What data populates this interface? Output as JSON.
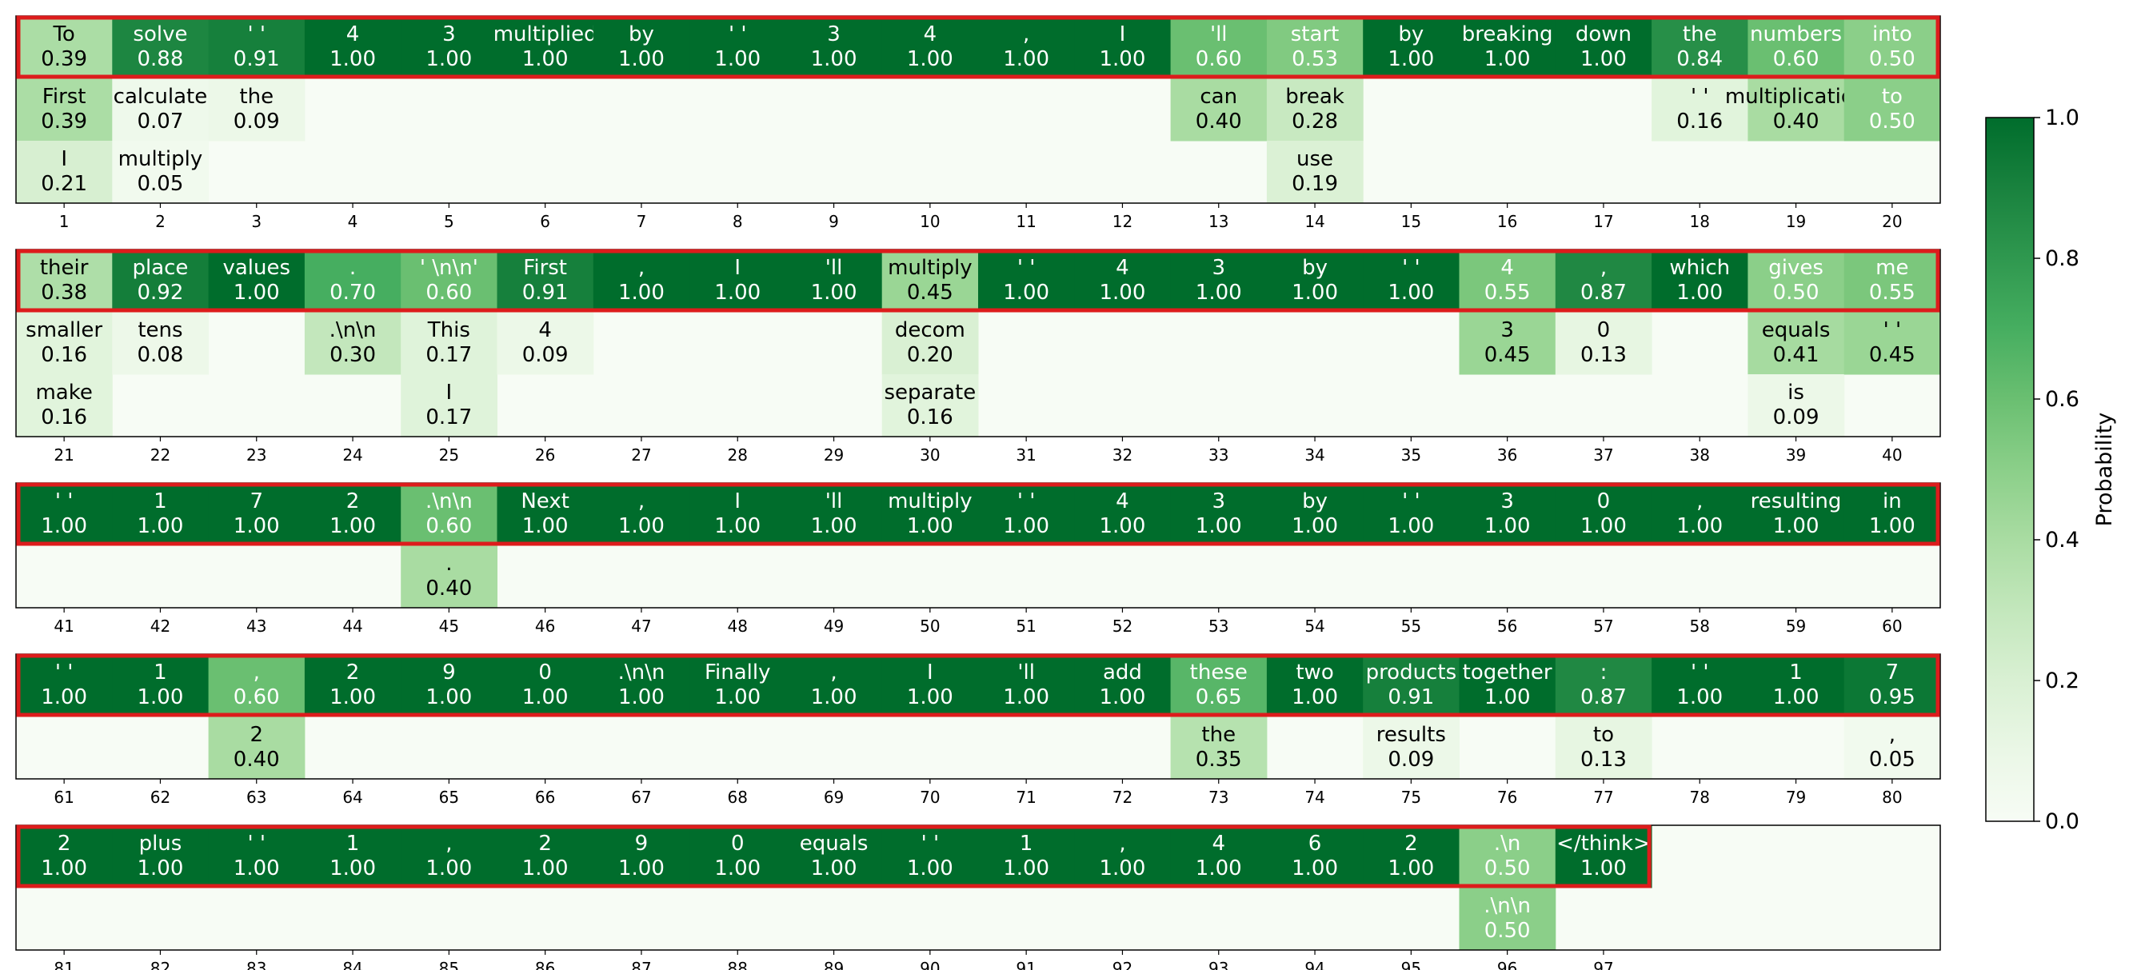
{
  "chart_data": {
    "type": "heatmap",
    "title": "",
    "xlabel": "",
    "ylabel": "",
    "colorbar": {
      "label": "Probability",
      "range": [
        0.0,
        1.0
      ],
      "ticks": [
        "0.0",
        "0.2",
        "0.4",
        "0.6",
        "0.8",
        "1.0"
      ],
      "colormap": "Greens"
    },
    "selected_path_color": "#dd1c1c",
    "rows": [
      {
        "positions": [
          "1",
          "2",
          "3",
          "4",
          "5",
          "6",
          "7",
          "8",
          "9",
          "10",
          "11",
          "12",
          "13",
          "14",
          "15",
          "16",
          "17",
          "18",
          "19",
          "20"
        ],
        "candidates": [
          [
            {
              "token": "To",
              "p": 0.39
            },
            {
              "token": "First",
              "p": 0.39
            },
            {
              "token": "I",
              "p": 0.21
            }
          ],
          [
            {
              "token": "solve",
              "p": 0.88
            },
            {
              "token": "calculate",
              "p": 0.07
            },
            {
              "token": "multiply",
              "p": 0.05
            }
          ],
          [
            {
              "token": "' '",
              "p": 0.91
            },
            {
              "token": "the",
              "p": 0.09
            }
          ],
          [
            {
              "token": "4",
              "p": 1.0
            }
          ],
          [
            {
              "token": "3",
              "p": 1.0
            }
          ],
          [
            {
              "token": "multiplied",
              "p": 1.0
            }
          ],
          [
            {
              "token": "by",
              "p": 1.0
            }
          ],
          [
            {
              "token": "' '",
              "p": 1.0
            }
          ],
          [
            {
              "token": "3",
              "p": 1.0
            }
          ],
          [
            {
              "token": "4",
              "p": 1.0
            }
          ],
          [
            {
              "token": ",",
              "p": 1.0
            }
          ],
          [
            {
              "token": "I",
              "p": 1.0
            }
          ],
          [
            {
              "token": "'ll",
              "p": 0.6
            },
            {
              "token": "can",
              "p": 0.4
            }
          ],
          [
            {
              "token": "start",
              "p": 0.53
            },
            {
              "token": "break",
              "p": 0.28
            },
            {
              "token": "use",
              "p": 0.19
            }
          ],
          [
            {
              "token": "by",
              "p": 1.0
            }
          ],
          [
            {
              "token": "breaking",
              "p": 1.0
            }
          ],
          [
            {
              "token": "down",
              "p": 1.0
            }
          ],
          [
            {
              "token": "the",
              "p": 0.84
            },
            {
              "token": "' '",
              "p": 0.16
            }
          ],
          [
            {
              "token": "numbers",
              "p": 0.6
            },
            {
              "token": "multiplication",
              "p": 0.4
            }
          ],
          [
            {
              "token": "into",
              "p": 0.5
            },
            {
              "token": "to",
              "p": 0.5
            }
          ]
        ]
      },
      {
        "positions": [
          "21",
          "22",
          "23",
          "24",
          "25",
          "26",
          "27",
          "28",
          "29",
          "30",
          "31",
          "32",
          "33",
          "34",
          "35",
          "36",
          "37",
          "38",
          "39",
          "40"
        ],
        "candidates": [
          [
            {
              "token": "their",
              "p": 0.38
            },
            {
              "token": "smaller",
              "p": 0.16
            },
            {
              "token": "make",
              "p": 0.16
            }
          ],
          [
            {
              "token": "place",
              "p": 0.92
            },
            {
              "token": "tens",
              "p": 0.08
            }
          ],
          [
            {
              "token": "values",
              "p": 1.0
            }
          ],
          [
            {
              "token": ".",
              "p": 0.7
            },
            {
              "token": ".\\n\\n",
              "p": 0.3
            }
          ],
          [
            {
              "token": "' \\n\\n'",
              "p": 0.6
            },
            {
              "token": "This",
              "p": 0.17
            },
            {
              "token": "I",
              "p": 0.17
            }
          ],
          [
            {
              "token": "First",
              "p": 0.91
            },
            {
              "token": "4",
              "p": 0.09
            }
          ],
          [
            {
              "token": ",",
              "p": 1.0
            }
          ],
          [
            {
              "token": "I",
              "p": 1.0
            }
          ],
          [
            {
              "token": "'ll",
              "p": 1.0
            }
          ],
          [
            {
              "token": "multiply",
              "p": 0.45
            },
            {
              "token": "decom",
              "p": 0.2
            },
            {
              "token": "separate",
              "p": 0.16
            }
          ],
          [
            {
              "token": "' '",
              "p": 1.0
            }
          ],
          [
            {
              "token": "4",
              "p": 1.0
            }
          ],
          [
            {
              "token": "3",
              "p": 1.0
            }
          ],
          [
            {
              "token": "by",
              "p": 1.0
            }
          ],
          [
            {
              "token": "' '",
              "p": 1.0
            }
          ],
          [
            {
              "token": "4",
              "p": 0.55
            },
            {
              "token": "3",
              "p": 0.45
            }
          ],
          [
            {
              "token": ",",
              "p": 0.87
            },
            {
              "token": "0",
              "p": 0.13
            }
          ],
          [
            {
              "token": "which",
              "p": 1.0
            }
          ],
          [
            {
              "token": "gives",
              "p": 0.5
            },
            {
              "token": "equals",
              "p": 0.41
            },
            {
              "token": "is",
              "p": 0.09
            }
          ],
          [
            {
              "token": "me",
              "p": 0.55
            },
            {
              "token": "' '",
              "p": 0.45
            }
          ]
        ]
      },
      {
        "positions": [
          "41",
          "42",
          "43",
          "44",
          "45",
          "46",
          "47",
          "48",
          "49",
          "50",
          "51",
          "52",
          "53",
          "54",
          "55",
          "56",
          "57",
          "58",
          "59",
          "60"
        ],
        "candidates": [
          [
            {
              "token": "' '",
              "p": 1.0
            }
          ],
          [
            {
              "token": "1",
              "p": 1.0
            }
          ],
          [
            {
              "token": "7",
              "p": 1.0
            }
          ],
          [
            {
              "token": "2",
              "p": 1.0
            }
          ],
          [
            {
              "token": ".\\n\\n",
              "p": 0.6
            },
            {
              "token": ".",
              "p": 0.4
            }
          ],
          [
            {
              "token": "Next",
              "p": 1.0
            }
          ],
          [
            {
              "token": ",",
              "p": 1.0
            }
          ],
          [
            {
              "token": "I",
              "p": 1.0
            }
          ],
          [
            {
              "token": "'ll",
              "p": 1.0
            }
          ],
          [
            {
              "token": "multiply",
              "p": 1.0
            }
          ],
          [
            {
              "token": "' '",
              "p": 1.0
            }
          ],
          [
            {
              "token": "4",
              "p": 1.0
            }
          ],
          [
            {
              "token": "3",
              "p": 1.0
            }
          ],
          [
            {
              "token": "by",
              "p": 1.0
            }
          ],
          [
            {
              "token": "' '",
              "p": 1.0
            }
          ],
          [
            {
              "token": "3",
              "p": 1.0
            }
          ],
          [
            {
              "token": "0",
              "p": 1.0
            }
          ],
          [
            {
              "token": ",",
              "p": 1.0
            }
          ],
          [
            {
              "token": "resulting",
              "p": 1.0
            }
          ],
          [
            {
              "token": "in",
              "p": 1.0
            }
          ]
        ]
      },
      {
        "positions": [
          "61",
          "62",
          "63",
          "64",
          "65",
          "66",
          "67",
          "68",
          "69",
          "70",
          "71",
          "72",
          "73",
          "74",
          "75",
          "76",
          "77",
          "78",
          "79",
          "80"
        ],
        "candidates": [
          [
            {
              "token": "' '",
              "p": 1.0
            }
          ],
          [
            {
              "token": "1",
              "p": 1.0
            }
          ],
          [
            {
              "token": ",",
              "p": 0.6
            },
            {
              "token": "2",
              "p": 0.4
            }
          ],
          [
            {
              "token": "2",
              "p": 1.0
            }
          ],
          [
            {
              "token": "9",
              "p": 1.0
            }
          ],
          [
            {
              "token": "0",
              "p": 1.0
            }
          ],
          [
            {
              "token": ".\\n\\n",
              "p": 1.0
            }
          ],
          [
            {
              "token": "Finally",
              "p": 1.0
            }
          ],
          [
            {
              "token": ",",
              "p": 1.0
            }
          ],
          [
            {
              "token": "I",
              "p": 1.0
            }
          ],
          [
            {
              "token": "'ll",
              "p": 1.0
            }
          ],
          [
            {
              "token": "add",
              "p": 1.0
            }
          ],
          [
            {
              "token": "these",
              "p": 0.65
            },
            {
              "token": "the",
              "p": 0.35
            }
          ],
          [
            {
              "token": "two",
              "p": 1.0
            }
          ],
          [
            {
              "token": "products",
              "p": 0.91
            },
            {
              "token": "results",
              "p": 0.09
            }
          ],
          [
            {
              "token": "together",
              "p": 1.0
            }
          ],
          [
            {
              "token": ":",
              "p": 0.87
            },
            {
              "token": "to",
              "p": 0.13
            }
          ],
          [
            {
              "token": "' '",
              "p": 1.0
            }
          ],
          [
            {
              "token": "1",
              "p": 1.0
            }
          ],
          [
            {
              "token": "7",
              "p": 0.95
            },
            {
              "token": ",",
              "p": 0.05
            }
          ]
        ]
      },
      {
        "positions": [
          "81",
          "82",
          "83",
          "84",
          "85",
          "86",
          "87",
          "88",
          "89",
          "90",
          "91",
          "92",
          "93",
          "94",
          "95",
          "96",
          "97"
        ],
        "candidates": [
          [
            {
              "token": "2",
              "p": 1.0
            }
          ],
          [
            {
              "token": "plus",
              "p": 1.0
            }
          ],
          [
            {
              "token": "' '",
              "p": 1.0
            }
          ],
          [
            {
              "token": "1",
              "p": 1.0
            }
          ],
          [
            {
              "token": ",",
              "p": 1.0
            }
          ],
          [
            {
              "token": "2",
              "p": 1.0
            }
          ],
          [
            {
              "token": "9",
              "p": 1.0
            }
          ],
          [
            {
              "token": "0",
              "p": 1.0
            }
          ],
          [
            {
              "token": "equals",
              "p": 1.0
            }
          ],
          [
            {
              "token": "' '",
              "p": 1.0
            }
          ],
          [
            {
              "token": "1",
              "p": 1.0
            }
          ],
          [
            {
              "token": ",",
              "p": 1.0
            }
          ],
          [
            {
              "token": "4",
              "p": 1.0
            }
          ],
          [
            {
              "token": "6",
              "p": 1.0
            }
          ],
          [
            {
              "token": "2",
              "p": 1.0
            }
          ],
          [
            {
              "token": ".\\n",
              "p": 0.5
            },
            {
              "token": ".\\n\\n",
              "p": 0.5
            }
          ],
          [
            {
              "token": "</think>",
              "p": 1.0
            }
          ]
        ]
      }
    ]
  }
}
